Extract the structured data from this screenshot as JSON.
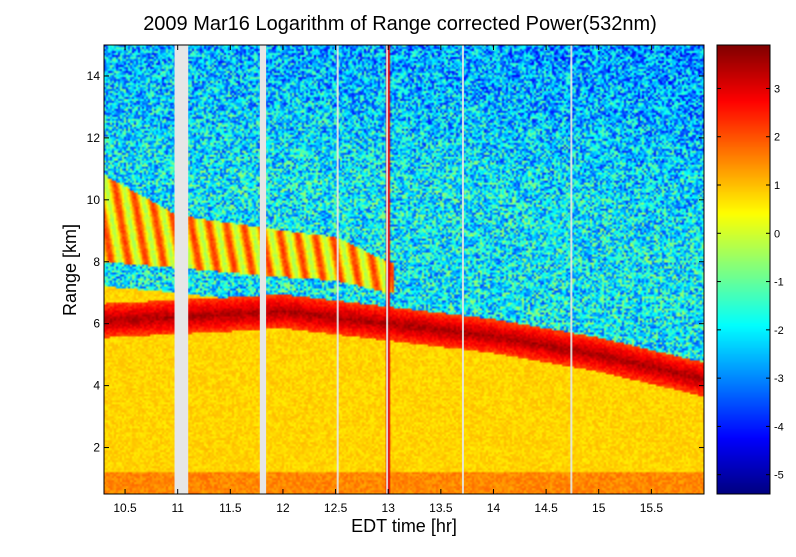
{
  "chart_data": {
    "type": "heatmap",
    "title": "2009 Mar16  Logarithm of Range corrected Power(532nm)",
    "xlabel": "EDT time [hr]",
    "ylabel": "Range [km]",
    "xlim": [
      10.3,
      16.0
    ],
    "ylim": [
      0.5,
      15.0
    ],
    "x_ticks": [
      "10.5",
      "11",
      "11.5",
      "12",
      "12.5",
      "13",
      "13.5",
      "14",
      "14.5",
      "15",
      "15.5"
    ],
    "x_tick_values": [
      10.5,
      11,
      11.5,
      12,
      12.5,
      13,
      13.5,
      14,
      14.5,
      15,
      15.5
    ],
    "y_ticks": [
      "2",
      "4",
      "6",
      "8",
      "10",
      "12",
      "14"
    ],
    "y_tick_values": [
      2,
      4,
      6,
      8,
      10,
      12,
      14
    ],
    "colorbar": {
      "range": [
        -5.4,
        3.9
      ],
      "ticks": [
        "-5",
        "-4",
        "-3",
        "-2",
        "-1",
        "0",
        "1",
        "2",
        "3"
      ],
      "tick_values": [
        -5,
        -4,
        -3,
        -2,
        -1,
        0,
        1,
        2,
        3
      ],
      "colormap": "jet"
    },
    "no_data_gaps": [
      [
        10.97,
        11.1
      ],
      [
        11.78,
        11.84
      ]
    ],
    "thin_gaps": [
      12.52,
      12.99,
      13.71,
      14.74
    ],
    "layers": [
      {
        "name": "boundary-layer",
        "top_km": [
          [
            10.3,
            7.2
          ],
          [
            11.0,
            7.0
          ],
          [
            12.0,
            6.6
          ],
          [
            13.0,
            6.3
          ],
          [
            14.0,
            5.9
          ],
          [
            15.0,
            5.2
          ],
          [
            16.0,
            4.3
          ]
        ],
        "level": 1.0
      },
      {
        "name": "cloud-layer-dense",
        "center_km": [
          [
            10.3,
            6.1
          ],
          [
            11.5,
            6.3
          ],
          [
            12.0,
            6.4
          ],
          [
            13.0,
            6.0
          ],
          [
            14.0,
            5.6
          ],
          [
            15.0,
            5.0
          ],
          [
            16.0,
            4.2
          ]
        ],
        "level": 3.5
      },
      {
        "name": "cirrus-layer",
        "range_km": [
          [
            10.3,
            8.0,
            10.8
          ],
          [
            11.0,
            7.8,
            9.5
          ],
          [
            12.0,
            7.5,
            9.0
          ],
          [
            12.5,
            7.4,
            8.8
          ],
          [
            13.0,
            7.0,
            8.0
          ]
        ],
        "level": 2.5
      },
      {
        "name": "surface-layer",
        "top_km": [
          [
            10.3,
            1.2
          ],
          [
            16.0,
            1.2
          ]
        ],
        "level": 1.5
      }
    ],
    "notable": {
      "vertical_streak_x": 13.0,
      "streak_level": 3.0
    }
  },
  "colors": {
    "background": "#ffffff",
    "gap": "#e6e6e6",
    "axis": "#000000"
  }
}
